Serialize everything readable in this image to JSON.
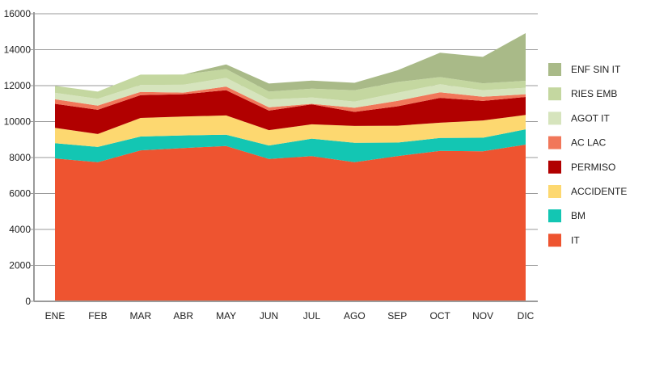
{
  "chart_data": {
    "type": "area",
    "stacked": true,
    "title": "",
    "xlabel": "",
    "ylabel": "",
    "ylim": [
      0,
      16000
    ],
    "yticks": [
      0,
      2000,
      4000,
      6000,
      8000,
      10000,
      12000,
      14000,
      16000
    ],
    "grid": true,
    "legend_position": "right",
    "categories": [
      "ENE",
      "FEB",
      "MAR",
      "ABR",
      "MAY",
      "JUN",
      "JUL",
      "AGO",
      "SEP",
      "OCT",
      "NOV",
      "DIC"
    ],
    "series": [
      {
        "name": "IT",
        "color": "#EE5430",
        "values": [
          7950,
          7740,
          8400,
          8530,
          8640,
          7920,
          8080,
          7740,
          8080,
          8370,
          8350,
          8720
        ]
      },
      {
        "name": "BM",
        "color": "#13C6B3",
        "values": [
          850,
          850,
          770,
          700,
          630,
          750,
          970,
          1080,
          750,
          720,
          750,
          850
        ]
      },
      {
        "name": "ACCIDENTE",
        "color": "#FDD870",
        "values": [
          850,
          720,
          1030,
          1050,
          1070,
          850,
          800,
          940,
          940,
          850,
          960,
          800
        ]
      },
      {
        "name": "PERMISO",
        "color": "#B10000",
        "values": [
          1340,
          1350,
          1270,
          1240,
          1410,
          1090,
          1110,
          780,
          1080,
          1380,
          1090,
          1000
        ]
      },
      {
        "name": "AC LAC",
        "color": "#F1775A",
        "values": [
          250,
          230,
          180,
          90,
          200,
          180,
          30,
          230,
          300,
          310,
          230,
          150
        ]
      },
      {
        "name": "AGOT IT",
        "color": "#D6E4BD",
        "values": [
          360,
          380,
          390,
          440,
          480,
          440,
          350,
          340,
          450,
          450,
          370,
          360
        ]
      },
      {
        "name": "RIES EMB",
        "color": "#C4D7A0",
        "values": [
          390,
          400,
          570,
          570,
          490,
          440,
          490,
          630,
          600,
          400,
          380,
          390
        ]
      },
      {
        "name": "ENF SIN IT",
        "color": "#A9BA88",
        "values": [
          0,
          0,
          0,
          0,
          260,
          450,
          450,
          420,
          650,
          1350,
          1470,
          2650
        ]
      }
    ]
  }
}
